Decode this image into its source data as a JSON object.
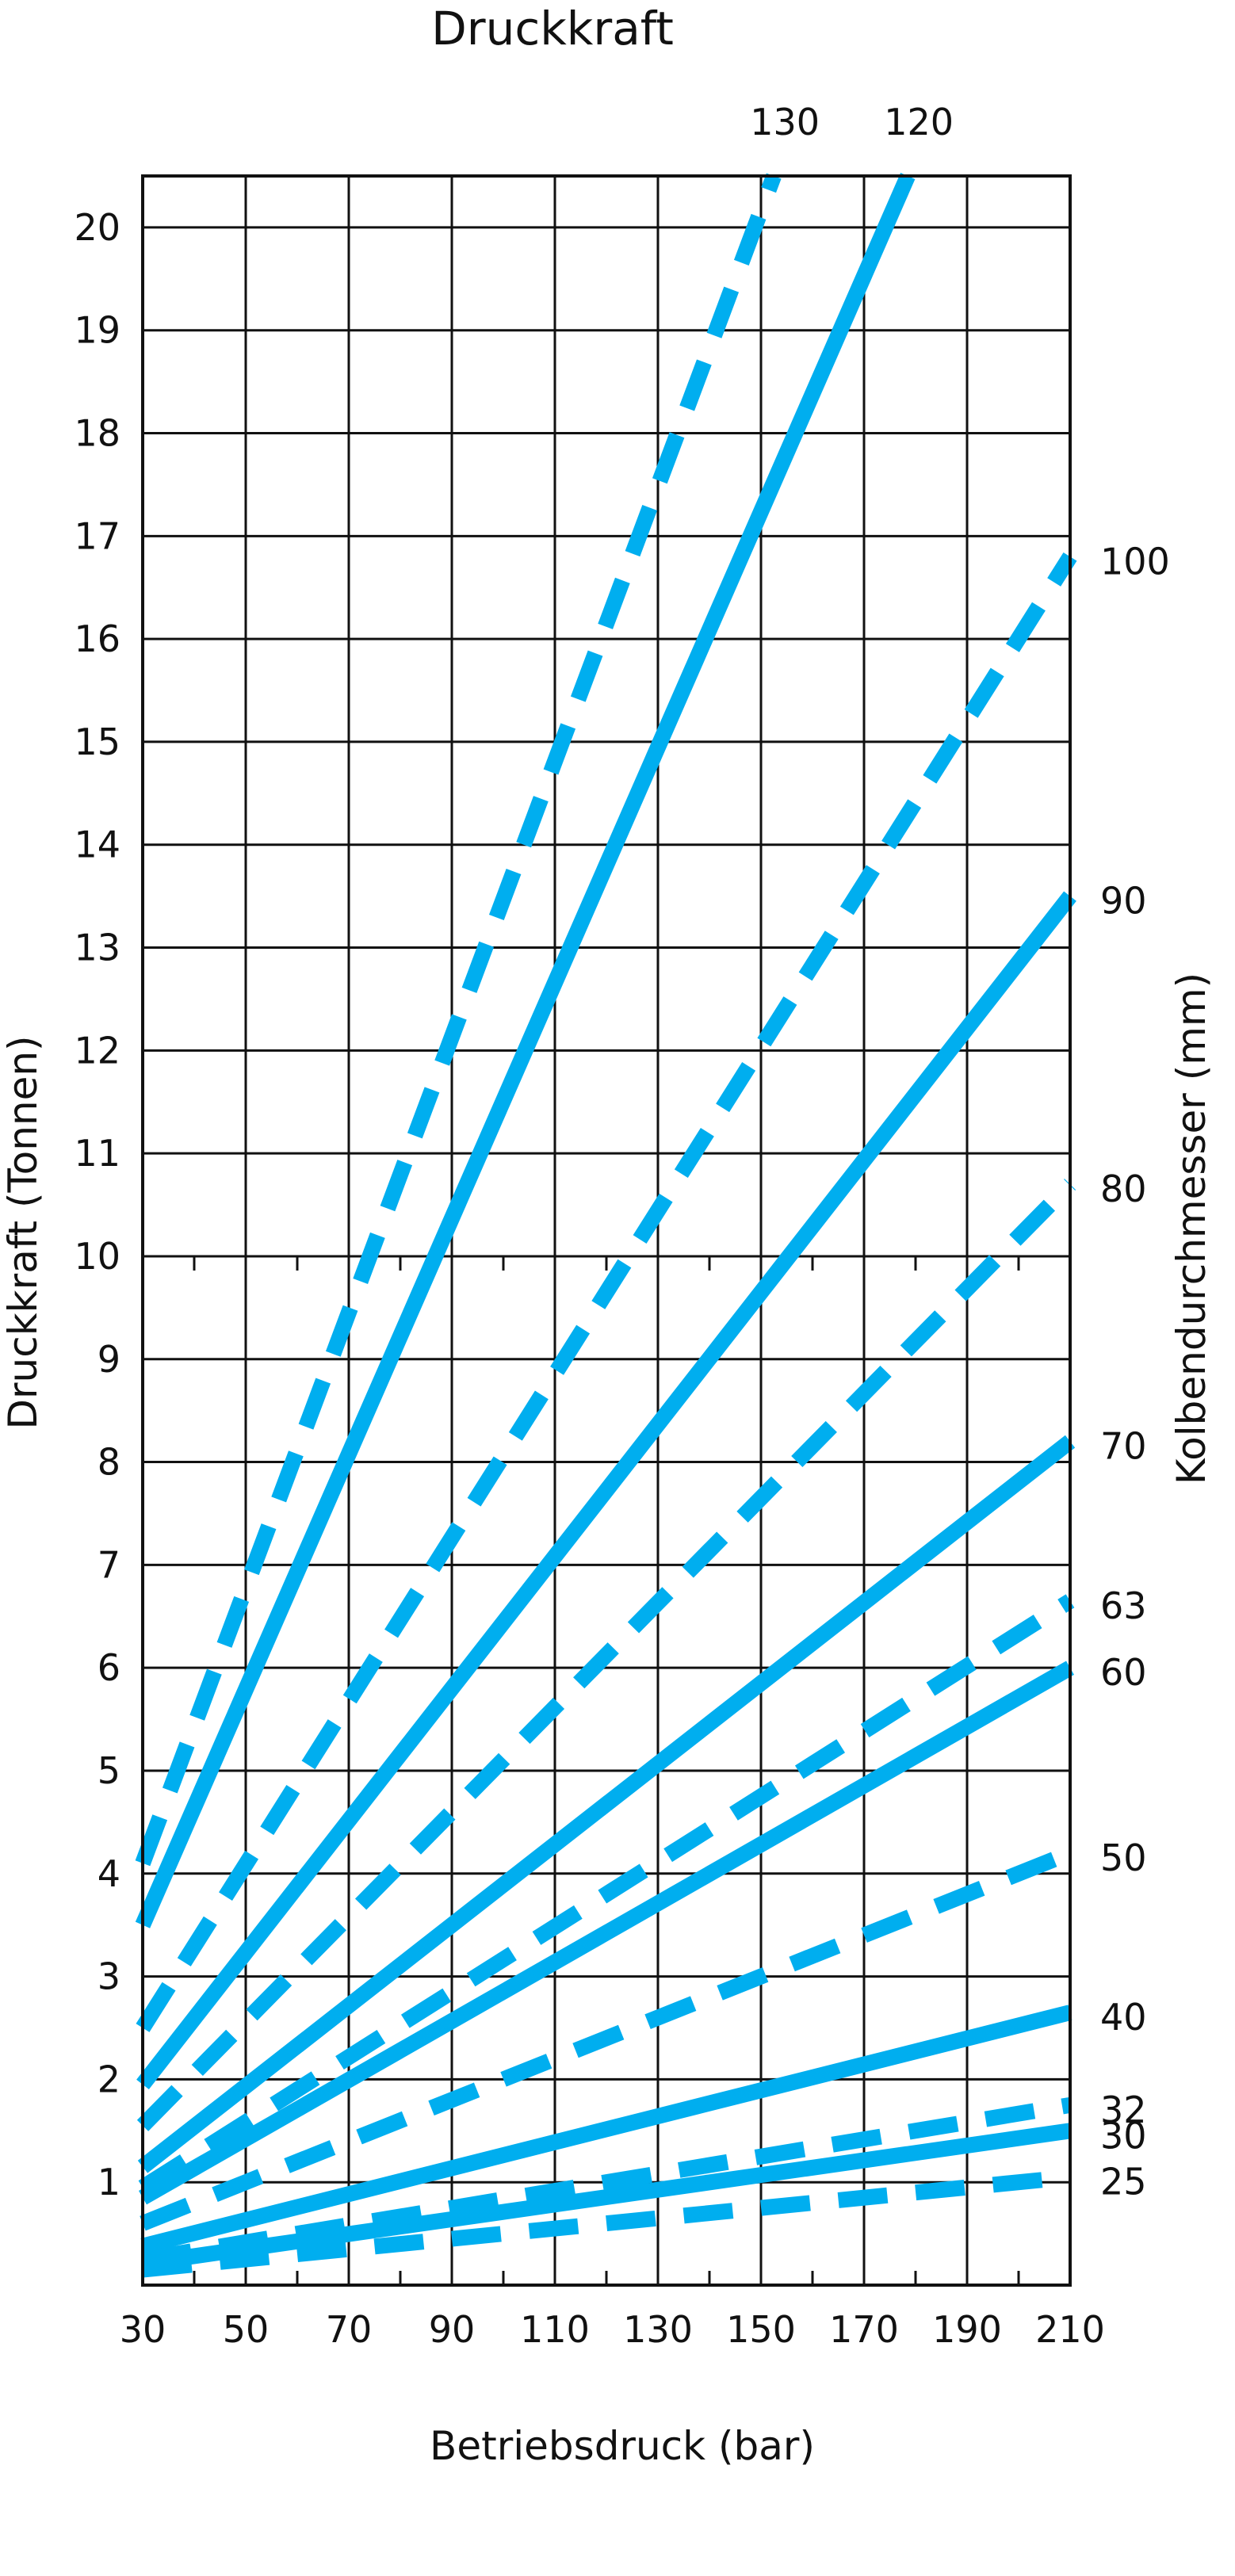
{
  "chart_data": {
    "type": "line",
    "title": "Druckkraft",
    "xlabel": "Betriebsdruck (bar)",
    "ylabel": "Druckkraft (Tonnen)",
    "y2label": "Kolbendurchmesser (mm)",
    "xlim": [
      30,
      210
    ],
    "ylim": [
      0,
      20.5
    ],
    "x_ticks": [
      30,
      50,
      70,
      90,
      110,
      130,
      150,
      170,
      190,
      210
    ],
    "y_ticks": [
      1,
      2,
      3,
      4,
      5,
      6,
      7,
      8,
      9,
      10,
      11,
      12,
      13,
      14,
      15,
      16,
      17,
      18,
      19,
      20
    ],
    "grid": true,
    "line_color": "#00aeef",
    "series": [
      {
        "name": "130",
        "style": "dashed",
        "x": [
          30,
          152.5
        ],
        "y": [
          4.1,
          20.5
        ]
      },
      {
        "name": "120",
        "style": "solid",
        "x": [
          30,
          178.5
        ],
        "y": [
          3.5,
          20.5
        ]
      },
      {
        "name": "100",
        "style": "dashed",
        "x": [
          30,
          210
        ],
        "y": [
          2.5,
          16.8
        ]
      },
      {
        "name": "90",
        "style": "solid",
        "x": [
          30,
          210
        ],
        "y": [
          1.95,
          13.5
        ]
      },
      {
        "name": "80",
        "style": "dashed",
        "x": [
          30,
          210
        ],
        "y": [
          1.55,
          10.7
        ]
      },
      {
        "name": "70",
        "style": "solid",
        "x": [
          30,
          210
        ],
        "y": [
          1.15,
          8.2
        ]
      },
      {
        "name": "63",
        "style": "dashed",
        "x": [
          30,
          210
        ],
        "y": [
          0.95,
          6.65
        ]
      },
      {
        "name": "60",
        "style": "solid",
        "x": [
          30,
          210
        ],
        "y": [
          0.85,
          6.0
        ]
      },
      {
        "name": "50",
        "style": "dashed",
        "x": [
          30,
          210
        ],
        "y": [
          0.6,
          4.2
        ]
      },
      {
        "name": "40",
        "style": "solid",
        "x": [
          30,
          210
        ],
        "y": [
          0.38,
          2.65
        ]
      },
      {
        "name": "32",
        "style": "dashed",
        "x": [
          30,
          210
        ],
        "y": [
          0.25,
          1.75
        ]
      },
      {
        "name": "30",
        "style": "solid",
        "x": [
          30,
          210
        ],
        "y": [
          0.21,
          1.5
        ]
      },
      {
        "name": "25",
        "style": "dashed",
        "x": [
          30,
          210
        ],
        "y": [
          0.15,
          1.05
        ]
      }
    ]
  }
}
